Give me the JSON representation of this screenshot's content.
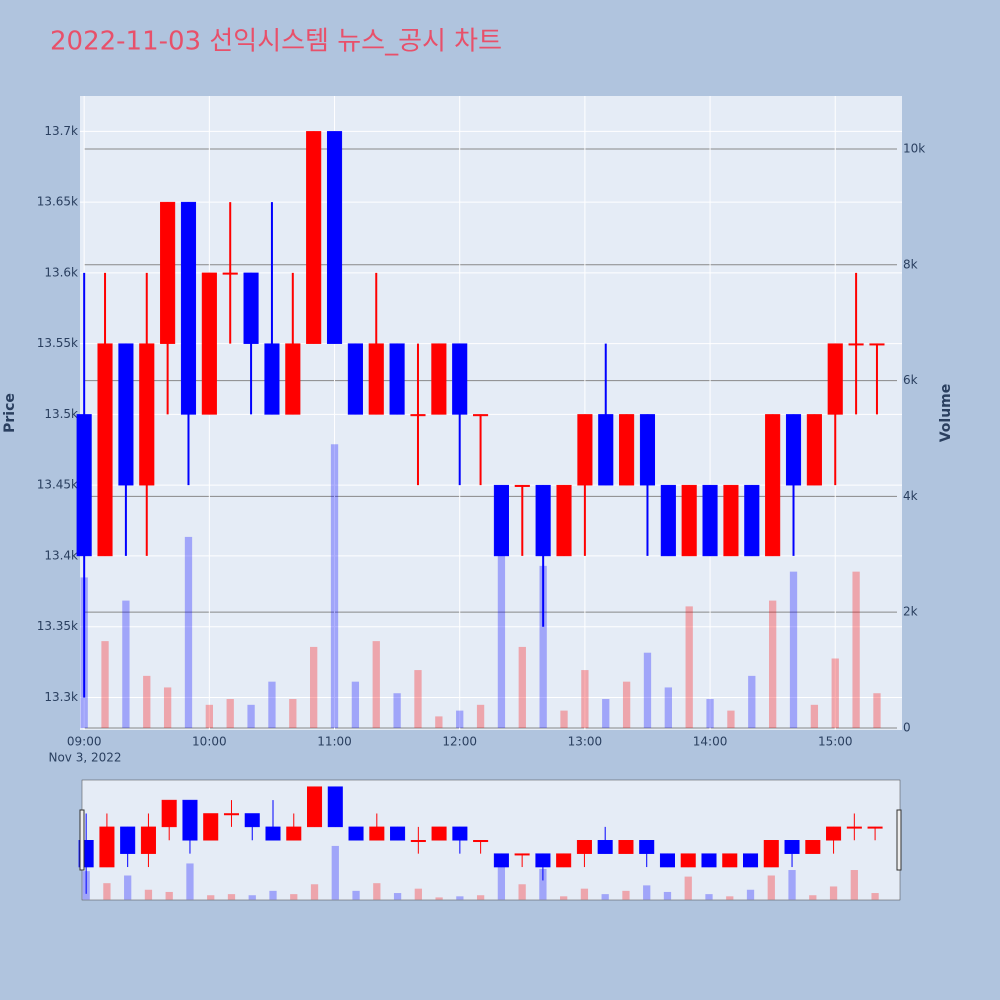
{
  "chart_data": {
    "type": "candlestick",
    "title": "2022-11-03 선익시스템 뉴스_공시 차트",
    "ylabel": "Price",
    "y2label": "Volume",
    "x_date": "Nov 3, 2022",
    "x": [
      "09:00",
      "09:10",
      "09:20",
      "09:30",
      "09:40",
      "09:50",
      "10:00",
      "10:10",
      "10:20",
      "10:30",
      "10:40",
      "10:50",
      "11:00",
      "11:10",
      "11:20",
      "11:30",
      "11:40",
      "11:50",
      "12:00",
      "12:10",
      "12:20",
      "12:30",
      "12:40",
      "12:50",
      "13:00",
      "13:10",
      "13:20",
      "13:30",
      "13:40",
      "13:50",
      "14:00",
      "14:10",
      "14:20",
      "14:30",
      "14:40",
      "14:50",
      "15:00",
      "15:10",
      "15:20"
    ],
    "open": [
      13500,
      13400,
      13550,
      13450,
      13550,
      13650,
      13500,
      13600,
      13600,
      13550,
      13500,
      13550,
      13700,
      13550,
      13500,
      13550,
      13500,
      13500,
      13550,
      13500,
      13450,
      13450,
      13450,
      13400,
      13450,
      13500,
      13450,
      13500,
      13450,
      13400,
      13450,
      13400,
      13450,
      13400,
      13500,
      13450,
      13500,
      13550,
      13550
    ],
    "high": [
      13600,
      13600,
      13550,
      13600,
      13650,
      13650,
      13600,
      13650,
      13600,
      13650,
      13600,
      13700,
      13700,
      13550,
      13600,
      13550,
      13550,
      13550,
      13550,
      13500,
      13450,
      13450,
      13450,
      13450,
      13500,
      13550,
      13500,
      13500,
      13450,
      13450,
      13450,
      13450,
      13450,
      13500,
      13500,
      13500,
      13550,
      13600,
      13550
    ],
    "low": [
      13300,
      13400,
      13400,
      13400,
      13500,
      13450,
      13500,
      13550,
      13500,
      13500,
      13500,
      13550,
      13550,
      13500,
      13500,
      13500,
      13450,
      13500,
      13450,
      13450,
      13400,
      13400,
      13350,
      13400,
      13400,
      13450,
      13450,
      13400,
      13400,
      13400,
      13400,
      13400,
      13400,
      13400,
      13400,
      13450,
      13450,
      13500,
      13500
    ],
    "close": [
      13400,
      13550,
      13450,
      13550,
      13650,
      13500,
      13600,
      13600,
      13550,
      13500,
      13550,
      13700,
      13550,
      13500,
      13550,
      13500,
      13500,
      13550,
      13500,
      13500,
      13400,
      13450,
      13400,
      13450,
      13500,
      13450,
      13500,
      13450,
      13400,
      13450,
      13400,
      13450,
      13400,
      13500,
      13450,
      13500,
      13550,
      13550,
      13550
    ],
    "volume": [
      2600,
      1500,
      2200,
      900,
      700,
      3300,
      400,
      500,
      400,
      800,
      500,
      1400,
      4900,
      800,
      1500,
      600,
      1000,
      200,
      300,
      400,
      4000,
      1400,
      2800,
      300,
      1000,
      500,
      800,
      1300,
      700,
      2100,
      500,
      300,
      900,
      2200,
      2700,
      400,
      1200,
      2700,
      600
    ],
    "increasing_color": "#ff0000",
    "decreasing_color": "#0000ff",
    "xlim": [
      "08:58",
      "15:32"
    ],
    "xticks": [
      "09:00",
      "10:00",
      "11:00",
      "12:00",
      "13:00",
      "14:00",
      "15:00"
    ],
    "ylim": [
      13277,
      13725
    ],
    "yticks": [
      {
        "value": 13300,
        "label": "13.3k"
      },
      {
        "value": 13350,
        "label": "13.35k"
      },
      {
        "value": 13400,
        "label": "13.4k"
      },
      {
        "value": 13450,
        "label": "13.45k"
      },
      {
        "value": 13500,
        "label": "13.5k"
      },
      {
        "value": 13550,
        "label": "13.55k"
      },
      {
        "value": 13600,
        "label": "13.6k"
      },
      {
        "value": 13650,
        "label": "13.65k"
      },
      {
        "value": 13700,
        "label": "13.7k"
      }
    ],
    "y2lim": [
      -35,
      10915
    ],
    "y2ticks": [
      0,
      {
        "value": 2000,
        "label": "2k"
      },
      {
        "value": 4000,
        "label": "4k"
      },
      {
        "value": 6000,
        "label": "6k"
      },
      {
        "value": 8000,
        "label": "8k"
      },
      {
        "value": 10000,
        "label": "10k"
      }
    ]
  }
}
